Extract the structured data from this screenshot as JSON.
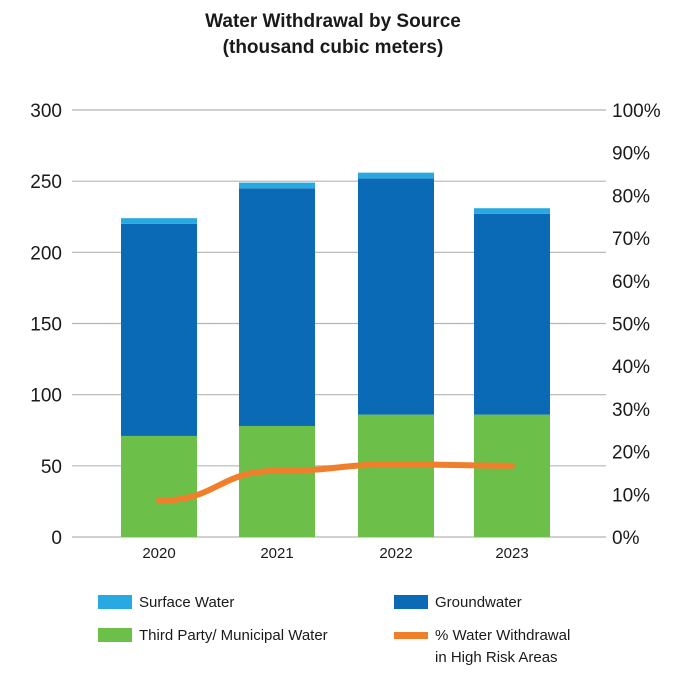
{
  "chart_data": {
    "type": "bar",
    "title": "Water Withdrawal by Source",
    "subtitle": "(thousand cubic meters)",
    "categories": [
      "2020",
      "2021",
      "2022",
      "2023"
    ],
    "stacked": true,
    "series": [
      {
        "name": "Third Party/ Municipal Water",
        "color": "#6cc04a",
        "values": [
          71,
          78,
          86,
          86
        ]
      },
      {
        "name": "Groundwater",
        "color": "#0a6ab5",
        "values": [
          149,
          167,
          166,
          141
        ]
      },
      {
        "name": "Surface Water",
        "color": "#29a9e1",
        "values": [
          4,
          4,
          4,
          4
        ]
      }
    ],
    "line_series": {
      "name": "% Water Withdrawal in High Risk Areas",
      "name_lines": [
        "% Water Withdrawal",
        "in High Risk Areas"
      ],
      "color": "#f07f2c",
      "axis": "right",
      "values": [
        8.5,
        15.5,
        17,
        16.7
      ]
    },
    "y_left": {
      "min": 0,
      "max": 300,
      "ticks": [
        "0",
        "50",
        "100",
        "150",
        "200",
        "250",
        "300"
      ]
    },
    "y_right": {
      "min": 0,
      "max": 100,
      "ticks": [
        "0%",
        "10%",
        "20%",
        "30%",
        "40%",
        "50%",
        "60%",
        "70%",
        "80%",
        "90%",
        "100%"
      ]
    },
    "grid": true,
    "legend_position": "bottom",
    "legend": [
      "Surface Water",
      "Groundwater",
      "Third Party/ Municipal Water",
      "% Water Withdrawal in High Risk Areas"
    ]
  }
}
